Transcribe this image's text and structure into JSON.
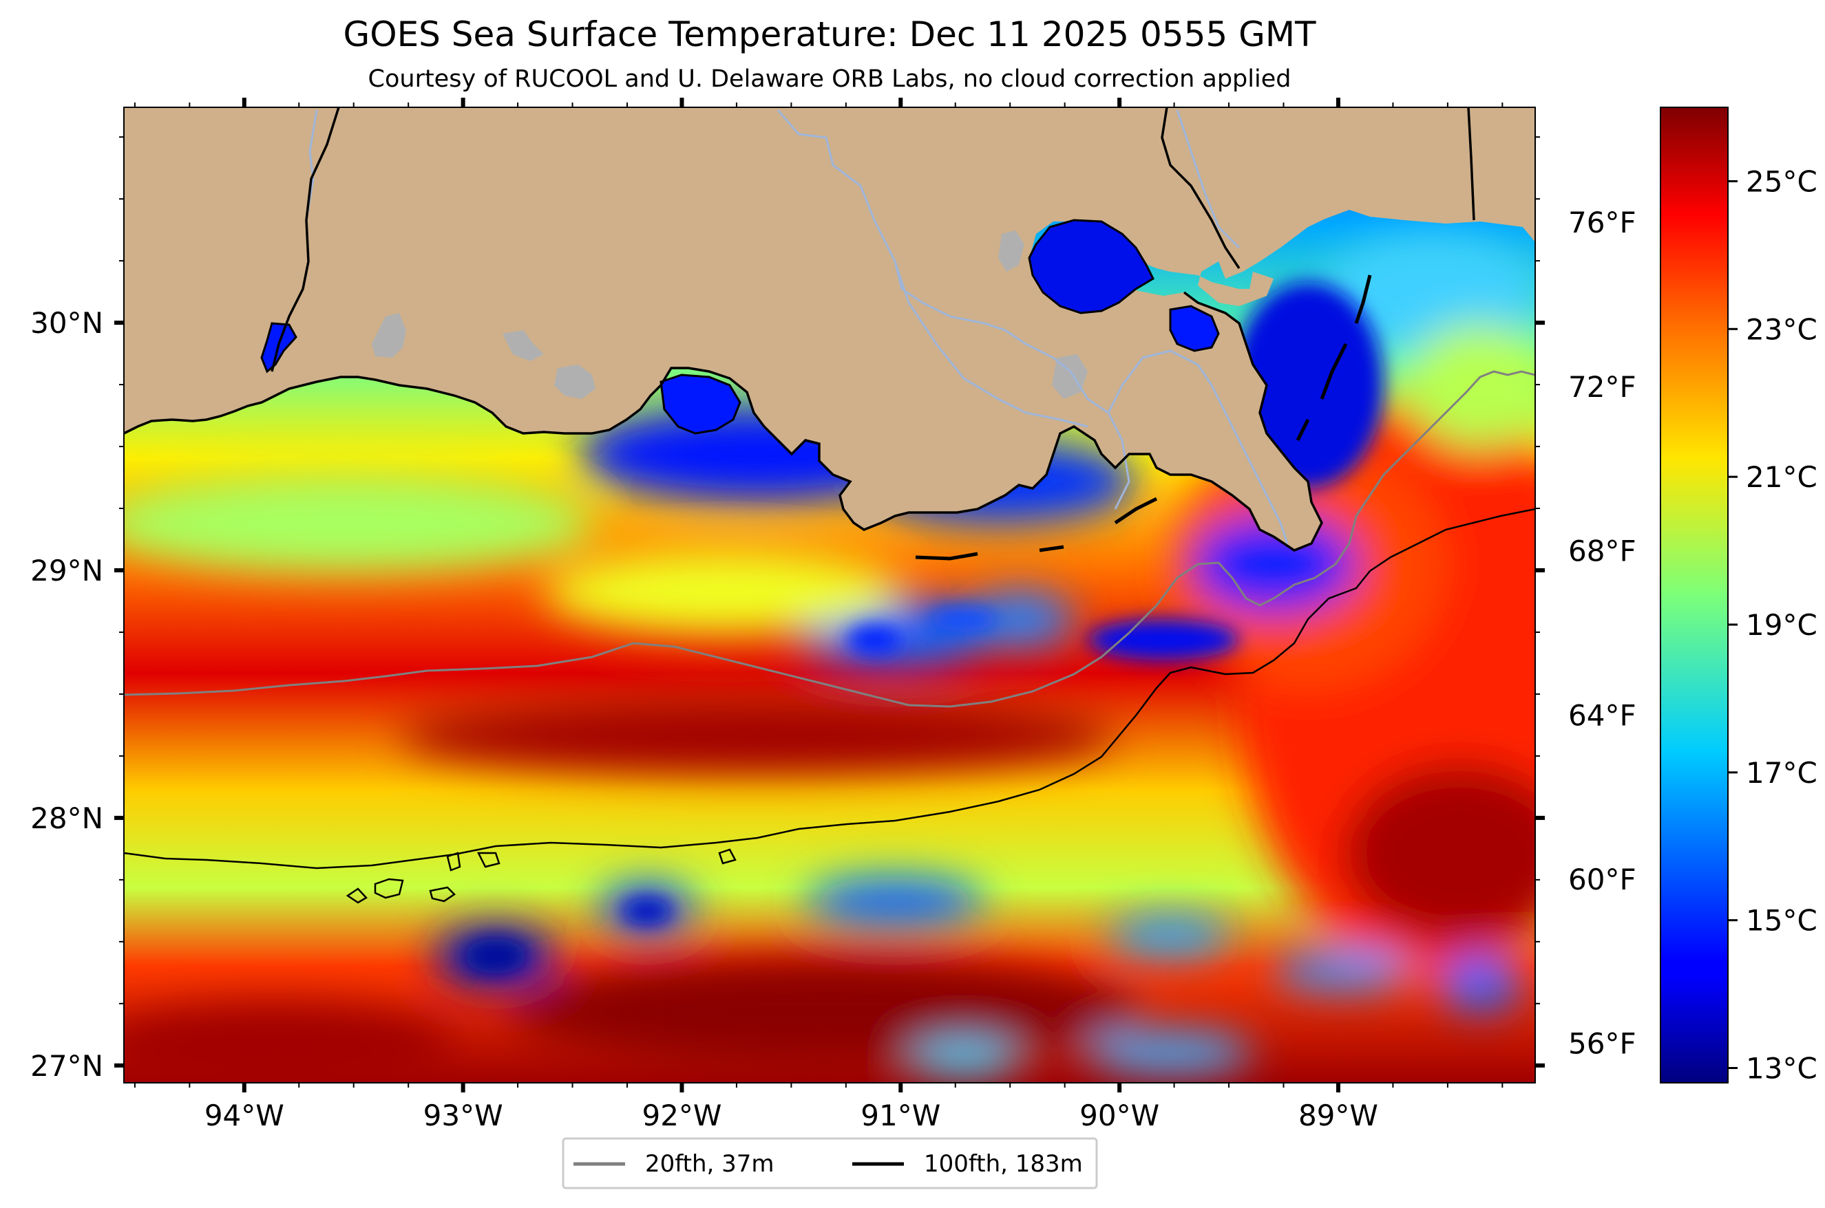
{
  "title": "GOES Sea Surface Temperature: Dec 11 2025 0555 GMT",
  "subtitle": "Courtesy of RUCOOL and U. Delaware ORB Labs, no cloud correction applied",
  "map": {
    "lon_range": [
      -94.55,
      -88.1
    ],
    "lat_range": [
      26.93,
      30.87
    ],
    "lon_ticks": [
      {
        "value": -94,
        "label": "94°W"
      },
      {
        "value": -93,
        "label": "93°W"
      },
      {
        "value": -92,
        "label": "92°W"
      },
      {
        "value": -91,
        "label": "91°W"
      },
      {
        "value": -90,
        "label": "90°W"
      },
      {
        "value": -89,
        "label": "89°W"
      }
    ],
    "lat_ticks": [
      {
        "value": 30,
        "label": "30°N"
      },
      {
        "value": 29,
        "label": "29°N"
      },
      {
        "value": 28,
        "label": "28°N"
      },
      {
        "value": 27,
        "label": "27°N"
      }
    ],
    "land_color": "#cfb08a",
    "lake_color": "#b0b0b0",
    "river_color": "#9fb5d9"
  },
  "colorbar": {
    "colormap": "jet",
    "celsius_range": [
      12.8,
      26.0
    ],
    "celsius_ticks": [
      {
        "value": 25,
        "label": "25°C"
      },
      {
        "value": 23,
        "label": "23°C"
      },
      {
        "value": 21,
        "label": "21°C"
      },
      {
        "value": 19,
        "label": "19°C"
      },
      {
        "value": 17,
        "label": "17°C"
      },
      {
        "value": 15,
        "label": "15°C"
      },
      {
        "value": 13,
        "label": "13°C"
      }
    ],
    "fahrenheit_ticks": [
      {
        "value": 76,
        "label": "76°F"
      },
      {
        "value": 72,
        "label": "72°F"
      },
      {
        "value": 68,
        "label": "68°F"
      },
      {
        "value": 64,
        "label": "64°F"
      },
      {
        "value": 60,
        "label": "60°F"
      },
      {
        "value": 56,
        "label": "56°F"
      }
    ]
  },
  "legend": {
    "items": [
      {
        "label": "20fth, 37m",
        "color": "#808080"
      },
      {
        "label": "100fth, 183m",
        "color": "#000000"
      }
    ]
  }
}
